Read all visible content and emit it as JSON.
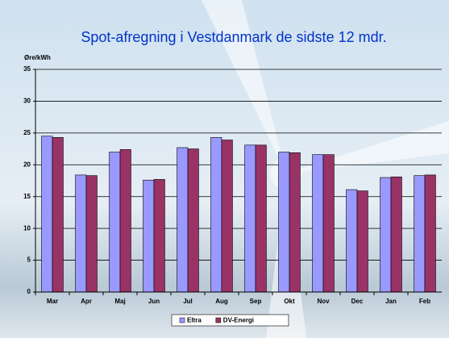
{
  "chart_data": {
    "type": "bar",
    "title": "Spot-afregning i Vestdanmark de sidste 12 mdr.",
    "y_label": "Øre/kWh",
    "categories": [
      "Mar",
      "Apr",
      "Maj",
      "Jun",
      "Jul",
      "Aug",
      "Sep",
      "Okt",
      "Nov",
      "Dec",
      "Jan",
      "Feb"
    ],
    "series": [
      {
        "name": "Eltra",
        "color": "#9999ff",
        "values": [
          24.5,
          18.4,
          22.0,
          17.6,
          22.7,
          24.3,
          23.1,
          22.0,
          21.6,
          16.1,
          18.0,
          18.3
        ]
      },
      {
        "name": "DV-Energi",
        "color": "#993366",
        "values": [
          24.3,
          18.3,
          22.4,
          17.7,
          22.5,
          23.9,
          23.1,
          21.9,
          21.6,
          15.9,
          18.1,
          18.4
        ]
      }
    ],
    "ylim": [
      0,
      35
    ],
    "yticks": [
      0,
      5,
      10,
      15,
      20,
      25,
      30,
      35
    ],
    "grid": true,
    "legend": "bottom"
  }
}
